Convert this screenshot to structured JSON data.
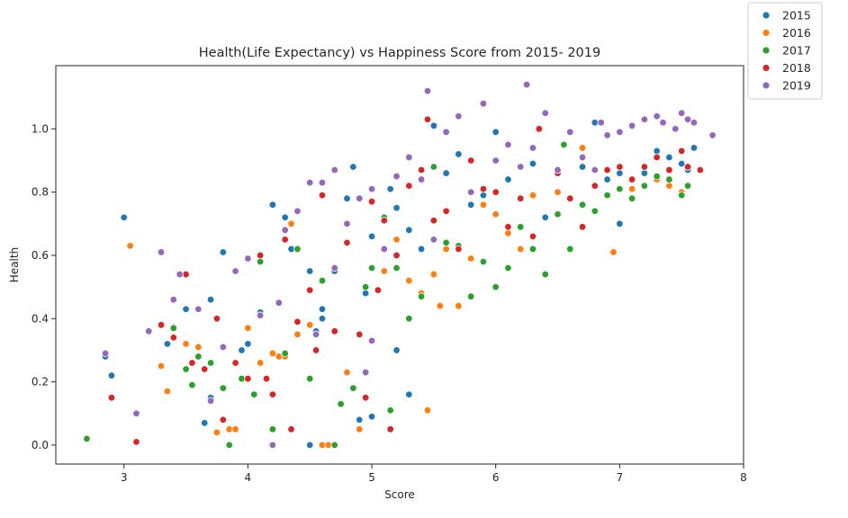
{
  "chart_data": {
    "type": "scatter",
    "title": "Health(Life Expectancy) vs Happiness Score from 2015- 2019",
    "xlabel": "Score",
    "ylabel": "Health",
    "xlim": [
      2.45,
      8.0
    ],
    "ylim": [
      -0.06,
      1.2
    ],
    "xticks": [
      3,
      4,
      5,
      6,
      7,
      8
    ],
    "yticks": [
      0.0,
      0.2,
      0.4,
      0.6,
      0.8,
      1.0
    ],
    "xtick_labels": [
      "3",
      "4",
      "5",
      "6",
      "7",
      "8"
    ],
    "ytick_labels": [
      "0.0",
      "0.2",
      "0.4",
      "0.6",
      "0.8",
      "1.0"
    ],
    "grid": false,
    "legend_position": "outside-top-right",
    "series": [
      {
        "name": "2015",
        "color": "#1f77b4",
        "points": [
          [
            3.0,
            0.72
          ],
          [
            2.85,
            0.28
          ],
          [
            2.9,
            0.22
          ],
          [
            3.35,
            0.32
          ],
          [
            3.5,
            0.43
          ],
          [
            3.7,
            0.46
          ],
          [
            3.8,
            0.61
          ],
          [
            3.95,
            0.3
          ],
          [
            4.0,
            0.32
          ],
          [
            4.1,
            0.42
          ],
          [
            4.2,
            0.76
          ],
          [
            4.3,
            0.72
          ],
          [
            4.35,
            0.62
          ],
          [
            4.5,
            0.55
          ],
          [
            4.55,
            0.36
          ],
          [
            4.6,
            0.4
          ],
          [
            4.7,
            0.55
          ],
          [
            4.8,
            0.78
          ],
          [
            4.85,
            0.88
          ],
          [
            5.0,
            0.66
          ],
          [
            5.1,
            0.72
          ],
          [
            5.2,
            0.75
          ],
          [
            5.3,
            0.68
          ],
          [
            5.4,
            0.62
          ],
          [
            5.5,
            1.01
          ],
          [
            5.6,
            0.86
          ],
          [
            5.7,
            0.92
          ],
          [
            5.8,
            0.76
          ],
          [
            5.9,
            0.79
          ],
          [
            6.0,
            0.99
          ],
          [
            6.1,
            0.84
          ],
          [
            6.3,
            0.89
          ],
          [
            6.5,
            0.86
          ],
          [
            6.7,
            0.88
          ],
          [
            6.8,
            1.02
          ],
          [
            6.9,
            0.84
          ],
          [
            7.0,
            0.86
          ],
          [
            7.2,
            0.86
          ],
          [
            7.3,
            0.93
          ],
          [
            7.4,
            0.91
          ],
          [
            7.5,
            0.89
          ],
          [
            7.6,
            0.94
          ],
          [
            7.55,
            0.87
          ],
          [
            3.65,
            0.07
          ],
          [
            4.5,
            0.0
          ],
          [
            4.9,
            0.08
          ],
          [
            5.0,
            0.09
          ],
          [
            5.2,
            0.3
          ],
          [
            5.3,
            0.16
          ],
          [
            3.7,
            0.15
          ],
          [
            4.6,
            0.43
          ],
          [
            5.15,
            0.81
          ],
          [
            6.4,
            0.72
          ],
          [
            7.0,
            0.7
          ],
          [
            4.95,
            0.48
          ]
        ]
      },
      {
        "name": "2016",
        "color": "#ff7f0e",
        "points": [
          [
            3.05,
            0.63
          ],
          [
            2.9,
            0.15
          ],
          [
            3.3,
            0.25
          ],
          [
            3.35,
            0.17
          ],
          [
            3.5,
            0.32
          ],
          [
            3.6,
            0.31
          ],
          [
            3.75,
            0.04
          ],
          [
            3.85,
            0.05
          ],
          [
            3.9,
            0.05
          ],
          [
            4.0,
            0.37
          ],
          [
            4.1,
            0.26
          ],
          [
            4.2,
            0.29
          ],
          [
            4.25,
            0.28
          ],
          [
            4.3,
            0.28
          ],
          [
            4.4,
            0.35
          ],
          [
            4.5,
            0.38
          ],
          [
            4.6,
            0.0
          ],
          [
            4.65,
            0.0
          ],
          [
            4.8,
            0.23
          ],
          [
            4.9,
            0.05
          ],
          [
            5.0,
            0.33
          ],
          [
            5.1,
            0.55
          ],
          [
            5.2,
            0.65
          ],
          [
            5.3,
            0.52
          ],
          [
            5.4,
            0.48
          ],
          [
            5.45,
            0.11
          ],
          [
            5.5,
            0.54
          ],
          [
            5.6,
            0.62
          ],
          [
            5.7,
            0.44
          ],
          [
            5.8,
            0.59
          ],
          [
            5.9,
            0.76
          ],
          [
            6.0,
            0.73
          ],
          [
            6.1,
            0.67
          ],
          [
            6.2,
            0.62
          ],
          [
            6.3,
            0.79
          ],
          [
            6.5,
            0.8
          ],
          [
            6.7,
            0.94
          ],
          [
            6.95,
            0.61
          ],
          [
            7.1,
            0.81
          ],
          [
            7.3,
            0.84
          ],
          [
            7.4,
            0.82
          ],
          [
            7.5,
            0.8
          ],
          [
            7.55,
            0.88
          ],
          [
            4.35,
            0.7
          ],
          [
            5.55,
            0.44
          ]
        ]
      },
      {
        "name": "2017",
        "color": "#2ca02c",
        "points": [
          [
            2.7,
            0.02
          ],
          [
            3.4,
            0.37
          ],
          [
            3.5,
            0.24
          ],
          [
            3.55,
            0.19
          ],
          [
            3.6,
            0.28
          ],
          [
            3.7,
            0.26
          ],
          [
            3.8,
            0.18
          ],
          [
            3.85,
            0.0
          ],
          [
            3.95,
            0.21
          ],
          [
            4.05,
            0.16
          ],
          [
            4.1,
            0.58
          ],
          [
            4.2,
            0.05
          ],
          [
            4.3,
            0.29
          ],
          [
            4.4,
            0.62
          ],
          [
            4.5,
            0.21
          ],
          [
            4.6,
            0.52
          ],
          [
            4.7,
            0.0
          ],
          [
            4.75,
            0.13
          ],
          [
            4.85,
            0.18
          ],
          [
            4.95,
            0.5
          ],
          [
            5.0,
            0.56
          ],
          [
            5.1,
            0.72
          ],
          [
            5.2,
            0.56
          ],
          [
            5.3,
            0.4
          ],
          [
            5.4,
            0.47
          ],
          [
            5.5,
            0.65
          ],
          [
            5.6,
            0.64
          ],
          [
            5.7,
            0.63
          ],
          [
            5.8,
            0.47
          ],
          [
            5.9,
            0.58
          ],
          [
            6.0,
            0.5
          ],
          [
            6.1,
            0.56
          ],
          [
            6.2,
            0.69
          ],
          [
            6.3,
            0.62
          ],
          [
            6.4,
            0.54
          ],
          [
            6.5,
            0.73
          ],
          [
            6.6,
            0.62
          ],
          [
            6.7,
            0.76
          ],
          [
            6.8,
            0.74
          ],
          [
            6.9,
            0.79
          ],
          [
            7.0,
            0.81
          ],
          [
            7.1,
            0.78
          ],
          [
            7.2,
            0.82
          ],
          [
            7.3,
            0.85
          ],
          [
            7.4,
            0.84
          ],
          [
            7.5,
            0.79
          ],
          [
            7.55,
            0.82
          ],
          [
            5.5,
            0.88
          ],
          [
            6.55,
            0.95
          ],
          [
            5.15,
            0.11
          ]
        ]
      },
      {
        "name": "2018",
        "color": "#d62728",
        "points": [
          [
            2.9,
            0.15
          ],
          [
            3.1,
            0.01
          ],
          [
            3.3,
            0.38
          ],
          [
            3.4,
            0.34
          ],
          [
            3.5,
            0.54
          ],
          [
            3.55,
            0.26
          ],
          [
            3.65,
            0.24
          ],
          [
            3.75,
            0.4
          ],
          [
            3.8,
            0.08
          ],
          [
            3.9,
            0.26
          ],
          [
            4.0,
            0.21
          ],
          [
            4.1,
            0.6
          ],
          [
            4.15,
            0.21
          ],
          [
            4.2,
            0.16
          ],
          [
            4.3,
            0.65
          ],
          [
            4.35,
            0.05
          ],
          [
            4.4,
            0.39
          ],
          [
            4.5,
            0.49
          ],
          [
            4.55,
            0.3
          ],
          [
            4.6,
            0.79
          ],
          [
            4.7,
            0.36
          ],
          [
            4.8,
            0.64
          ],
          [
            4.9,
            0.35
          ],
          [
            5.0,
            0.77
          ],
          [
            5.05,
            0.49
          ],
          [
            5.1,
            0.71
          ],
          [
            5.15,
            0.05
          ],
          [
            5.2,
            0.6
          ],
          [
            5.3,
            0.82
          ],
          [
            5.4,
            0.87
          ],
          [
            5.45,
            1.03
          ],
          [
            5.5,
            0.71
          ],
          [
            5.6,
            0.74
          ],
          [
            5.7,
            0.62
          ],
          [
            5.8,
            0.9
          ],
          [
            5.9,
            0.81
          ],
          [
            6.0,
            0.8
          ],
          [
            6.1,
            0.69
          ],
          [
            6.2,
            0.78
          ],
          [
            6.3,
            0.66
          ],
          [
            6.35,
            1.0
          ],
          [
            6.5,
            0.86
          ],
          [
            6.6,
            0.78
          ],
          [
            6.7,
            0.69
          ],
          [
            6.8,
            0.82
          ],
          [
            6.9,
            0.87
          ],
          [
            7.0,
            0.88
          ],
          [
            7.1,
            0.84
          ],
          [
            7.2,
            0.88
          ],
          [
            7.3,
            0.91
          ],
          [
            7.4,
            0.87
          ],
          [
            7.5,
            0.93
          ],
          [
            7.55,
            0.88
          ],
          [
            7.65,
            0.87
          ],
          [
            4.95,
            0.15
          ]
        ]
      },
      {
        "name": "2019",
        "color": "#9467bd",
        "points": [
          [
            2.85,
            0.29
          ],
          [
            3.1,
            0.1
          ],
          [
            3.2,
            0.36
          ],
          [
            3.3,
            0.61
          ],
          [
            3.4,
            0.46
          ],
          [
            3.45,
            0.54
          ],
          [
            3.6,
            0.43
          ],
          [
            3.7,
            0.14
          ],
          [
            3.8,
            0.31
          ],
          [
            3.9,
            0.55
          ],
          [
            4.0,
            0.59
          ],
          [
            4.1,
            0.41
          ],
          [
            4.2,
            0.0
          ],
          [
            4.25,
            0.45
          ],
          [
            4.3,
            0.68
          ],
          [
            4.4,
            0.74
          ],
          [
            4.5,
            0.83
          ],
          [
            4.55,
            0.35
          ],
          [
            4.6,
            0.83
          ],
          [
            4.7,
            0.87
          ],
          [
            4.8,
            0.7
          ],
          [
            4.9,
            0.78
          ],
          [
            5.0,
            0.81
          ],
          [
            5.1,
            0.62
          ],
          [
            5.2,
            0.85
          ],
          [
            5.3,
            0.91
          ],
          [
            5.4,
            0.84
          ],
          [
            5.45,
            1.12
          ],
          [
            5.5,
            0.65
          ],
          [
            5.6,
            0.99
          ],
          [
            5.7,
            1.04
          ],
          [
            5.8,
            0.8
          ],
          [
            5.9,
            1.08
          ],
          [
            6.0,
            0.9
          ],
          [
            6.1,
            0.95
          ],
          [
            6.2,
            0.88
          ],
          [
            6.25,
            1.14
          ],
          [
            6.3,
            0.94
          ],
          [
            6.4,
            1.05
          ],
          [
            6.5,
            0.87
          ],
          [
            6.6,
            0.99
          ],
          [
            6.7,
            0.91
          ],
          [
            6.8,
            0.87
          ],
          [
            6.85,
            1.02
          ],
          [
            6.9,
            0.98
          ],
          [
            7.0,
            0.99
          ],
          [
            7.1,
            1.01
          ],
          [
            7.2,
            1.03
          ],
          [
            7.3,
            1.04
          ],
          [
            7.35,
            1.02
          ],
          [
            7.45,
            1.0
          ],
          [
            7.5,
            1.05
          ],
          [
            7.55,
            1.03
          ],
          [
            7.6,
            1.02
          ],
          [
            7.75,
            0.98
          ],
          [
            4.95,
            0.23
          ],
          [
            4.7,
            0.56
          ],
          [
            5.0,
            0.33
          ]
        ]
      }
    ]
  }
}
